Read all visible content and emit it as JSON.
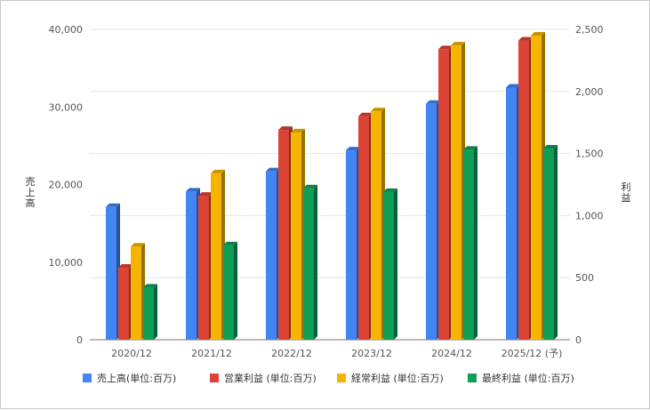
{
  "chart_data": {
    "type": "bar",
    "categories": [
      "2020/12",
      "2021/12",
      "2022/12",
      "2023/12",
      "2024/12",
      "2025/12 (予)"
    ],
    "left_axis": {
      "label": "売上高",
      "range": [
        0,
        40000
      ],
      "ticks": [
        "0",
        "10,000",
        "20,000",
        "30,000",
        "40,000"
      ],
      "tick_values": [
        0,
        10000,
        20000,
        30000,
        40000
      ]
    },
    "right_axis": {
      "label": "利益",
      "range": [
        0,
        2500
      ],
      "ticks": [
        "0",
        "500",
        "1,000",
        "1,500",
        "2,000",
        "2,500"
      ],
      "tick_values": [
        0,
        500,
        1000,
        1500,
        2000,
        2500
      ]
    },
    "series": [
      {
        "name": "売上高(単位:百万)",
        "axis": "left",
        "color": "#4285F4",
        "values": [
          17100,
          19100,
          21700,
          24400,
          30400,
          32500
        ]
      },
      {
        "name": "営業利益 (単位:百万)",
        "axis": "right",
        "color": "#DB4437",
        "values": [
          580,
          1160,
          1690,
          1800,
          2340,
          2410
        ]
      },
      {
        "name": "経常利益 (単位:百万)",
        "axis": "right",
        "color": "#F4B400",
        "values": [
          750,
          1340,
          1670,
          1840,
          2370,
          2450
        ]
      },
      {
        "name": "最終利益 (単位:百万)",
        "axis": "right",
        "color": "#0F9D58",
        "values": [
          420,
          760,
          1220,
          1190,
          1530,
          1540
        ]
      }
    ],
    "grid": true,
    "legend_position": "bottom"
  }
}
